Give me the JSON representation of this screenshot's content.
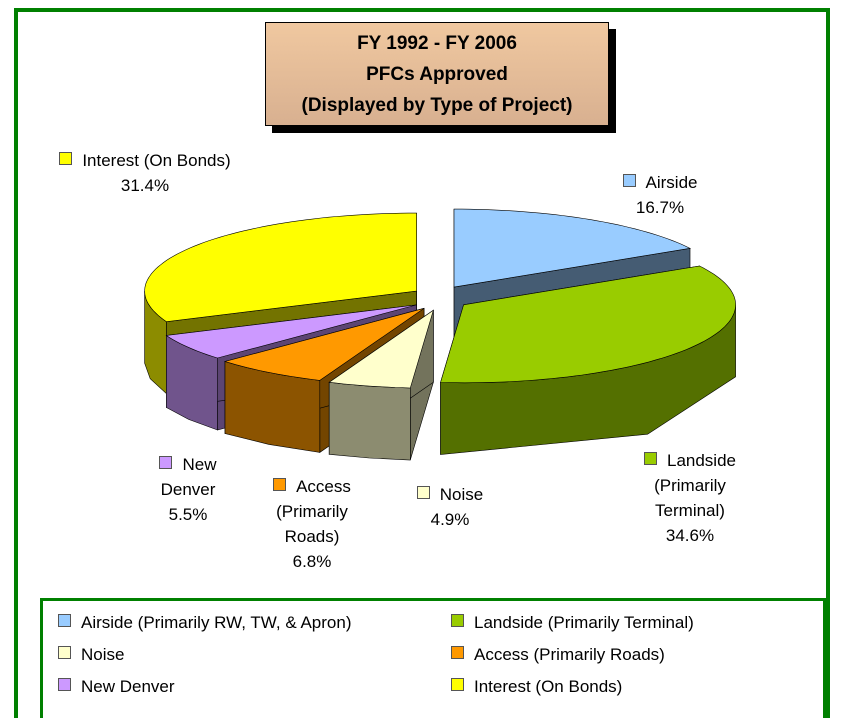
{
  "chart_data": {
    "type": "pie",
    "title": [
      "FY 1992 - FY 2006",
      "PFCs Approved",
      "(Displayed by Type of Project)"
    ],
    "categories": [
      "Airside (Primarily RW, TW, & Apron)",
      "Landside (Primarily Terminal)",
      "Noise",
      "Access (Primarily Roads)",
      "New Denver",
      "Interest (On Bonds)"
    ],
    "labels": [
      "Airside",
      "Landside (Primarily Terminal)",
      "Noise",
      "Access (Primarily Roads)",
      "New Denver",
      "Interest (On Bonds)"
    ],
    "values": [
      16.7,
      34.6,
      4.9,
      6.8,
      5.5,
      31.4
    ],
    "value_labels": [
      "16.7%",
      "34.6%",
      "4.9%",
      "6.8%",
      "5.5%",
      "31.4%"
    ],
    "colors": [
      "#99ccff",
      "#99cc00",
      "#ffffcc",
      "#ff9900",
      "#cc99ff",
      "#ffff00"
    ],
    "legend": "bottom"
  }
}
